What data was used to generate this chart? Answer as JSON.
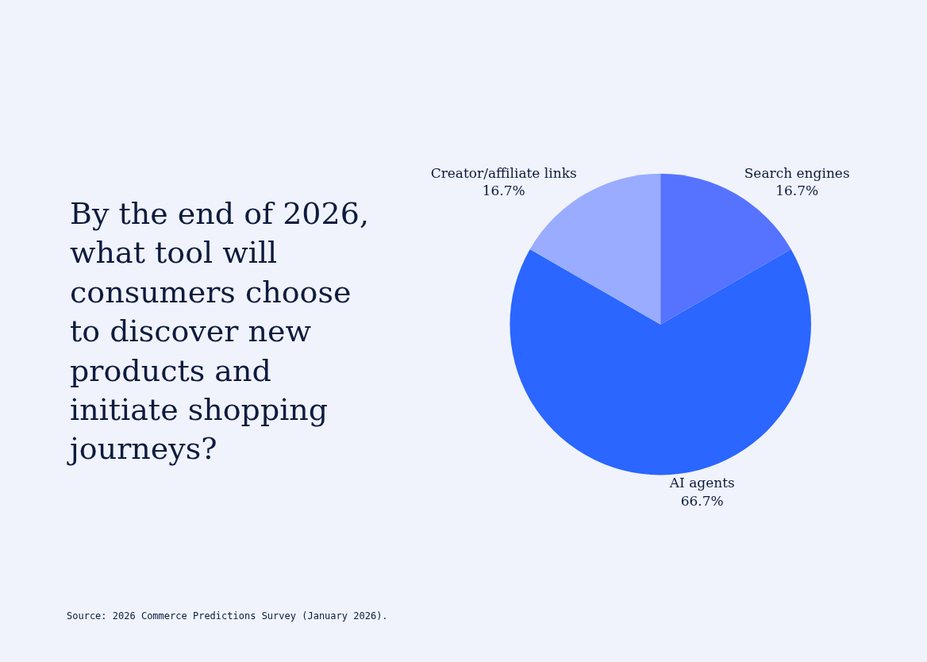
{
  "chart_data": {
    "type": "pie",
    "title": "By the end of 2026,\nwhat tool will\nconsumers choose\nto discover new\nproducts and\ninitiate shopping\njourneys?",
    "categories": [
      "Search engines",
      "AI agents",
      "Creator/affiliate links"
    ],
    "values": [
      16.7,
      66.7,
      16.7
    ],
    "colors": [
      "#5673ff",
      "#2a66ff",
      "#99acff"
    ],
    "value_labels": [
      "16.7%",
      "66.7%",
      "16.7%"
    ],
    "annotations": [
      "Source: 2026 Commerce Predictions Survey (January 2026)."
    ],
    "legend": false
  }
}
